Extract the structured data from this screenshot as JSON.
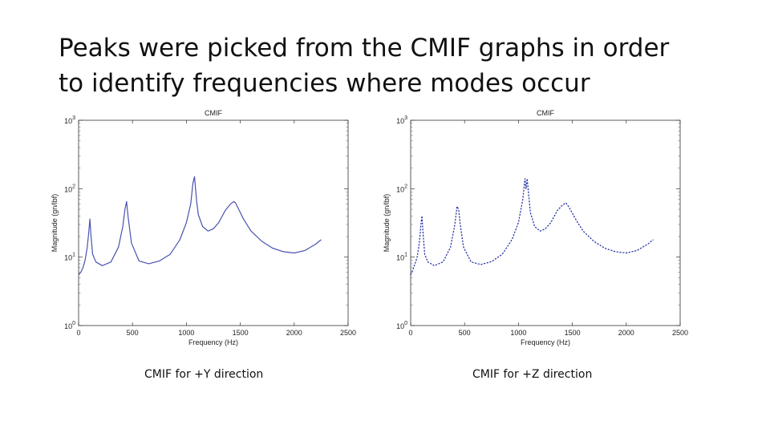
{
  "slide": {
    "title_line1": "Peaks were picked from the CMIF graphs in order",
    "title_line2": "to identify frequencies where modes occur"
  },
  "captions": {
    "left": "CMIF for +Y direction",
    "right": "CMIF for +Z direction"
  },
  "chart_data": [
    {
      "type": "line",
      "title": "CMIF",
      "xlabel": "Frequency (Hz)",
      "ylabel": "Magnitude (gn/lbf)",
      "xlim": [
        0,
        2500
      ],
      "ylim_log10": [
        0,
        3
      ],
      "yscale": "log",
      "xticks": [
        "0",
        "500",
        "1000",
        "1500",
        "2000",
        "2500"
      ],
      "yticks": [
        {
          "base": "10",
          "exp": "0"
        },
        {
          "base": "10",
          "exp": "1"
        },
        {
          "base": "10",
          "exp": "2"
        },
        {
          "base": "10",
          "exp": "3"
        }
      ],
      "grid": false,
      "line_style": "solid",
      "color": "#4a52b0",
      "series": [
        {
          "x": [
            0,
            20,
            40,
            60,
            80,
            95,
            105,
            115,
            130,
            160,
            220,
            300,
            370,
            410,
            430,
            445,
            460,
            490,
            560,
            650,
            750,
            850,
            940,
            1000,
            1040,
            1060,
            1075,
            1085,
            1095,
            1110,
            1150,
            1200,
            1250,
            1300,
            1360,
            1410,
            1440,
            1455,
            1480,
            1530,
            1600,
            1700,
            1800,
            1900,
            2000,
            2100,
            2200,
            2250
          ],
          "y": [
            5.5,
            6,
            7,
            9,
            14,
            24,
            36,
            20,
            11,
            8.5,
            7.5,
            8.5,
            14,
            28,
            50,
            65,
            38,
            16,
            8.8,
            8,
            8.8,
            11,
            18,
            32,
            60,
            120,
            150,
            100,
            65,
            42,
            28,
            24,
            26,
            32,
            48,
            60,
            65,
            62,
            52,
            36,
            24,
            17,
            13.5,
            12,
            11.5,
            12.5,
            15.5,
            18
          ]
        }
      ]
    },
    {
      "type": "line",
      "title": "CMIF",
      "xlabel": "Frequency (Hz)",
      "ylabel": "Magnitude (gn/lbf)",
      "xlim": [
        0,
        2500
      ],
      "ylim_log10": [
        0,
        3
      ],
      "yscale": "log",
      "xticks": [
        "0",
        "500",
        "1000",
        "1500",
        "2000",
        "2500"
      ],
      "yticks": [
        {
          "base": "10",
          "exp": "0"
        },
        {
          "base": "10",
          "exp": "1"
        },
        {
          "base": "10",
          "exp": "2"
        },
        {
          "base": "10",
          "exp": "3"
        }
      ],
      "grid": false,
      "line_style": "dotted",
      "color": "#1c2aa0",
      "series": [
        {
          "x": [
            0,
            20,
            40,
            60,
            80,
            95,
            105,
            115,
            130,
            160,
            220,
            300,
            370,
            410,
            430,
            445,
            460,
            490,
            560,
            650,
            750,
            850,
            940,
            1000,
            1040,
            1060,
            1070,
            1080,
            1095,
            1110,
            1150,
            1200,
            1250,
            1300,
            1360,
            1410,
            1440,
            1455,
            1480,
            1530,
            1600,
            1700,
            1800,
            1900,
            2000,
            2100,
            2200,
            2250
          ],
          "y": [
            5.5,
            6.5,
            8,
            10,
            16,
            30,
            40,
            22,
            11,
            8.5,
            7.5,
            8.5,
            14,
            30,
            55,
            50,
            30,
            14,
            8.5,
            7.8,
            8.6,
            11,
            18,
            32,
            70,
            140,
            100,
            140,
            80,
            45,
            28,
            24,
            26,
            32,
            48,
            58,
            62,
            58,
            50,
            36,
            24,
            17,
            13.5,
            12,
            11.5,
            12.5,
            15.5,
            18
          ]
        }
      ]
    }
  ]
}
